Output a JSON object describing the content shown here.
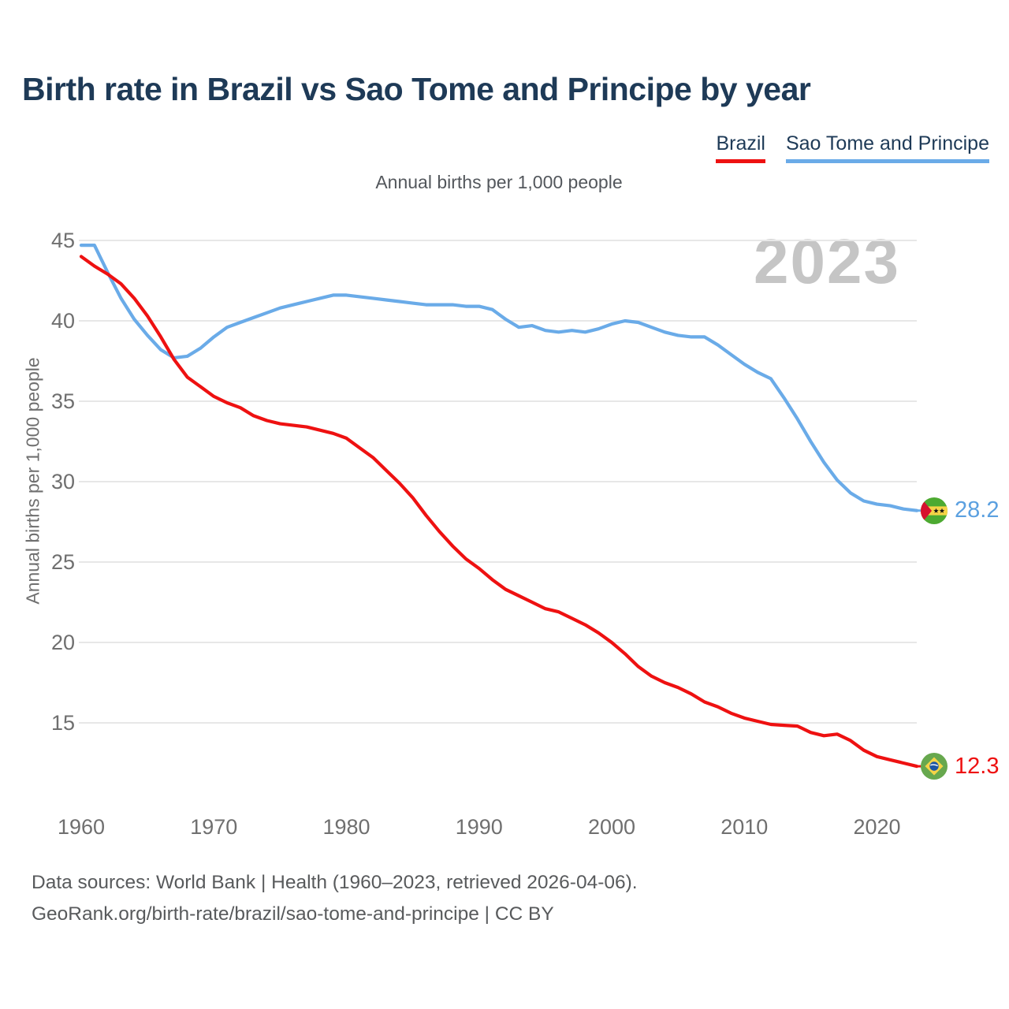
{
  "title": "Birth rate in Brazil vs Sao Tome and Principe by year",
  "subtitle": "Annual births per 1,000 people",
  "watermark": "2023",
  "y_axis_label": "Annual births per 1,000 people",
  "legend": {
    "items": [
      {
        "label": "Brazil",
        "color": "#ee1111"
      },
      {
        "label": "Sao Tome and Principe",
        "color": "#6aabe8"
      }
    ]
  },
  "end_labels": [
    {
      "series": "Sao Tome and Principe",
      "value": "28.2",
      "color": "#5ba0e0",
      "flag_icon": "sao-tome-and-principe-flag"
    },
    {
      "series": "Brazil",
      "value": "12.3",
      "color": "#ee1111",
      "flag_icon": "brazil-flag"
    }
  ],
  "footer": {
    "line1": "Data sources: World Bank | Health (1960–2023, retrieved 2026-04-06).",
    "line2": "GeoRank.org/birth-rate/brazil/sao-tome-and-principe | CC BY"
  },
  "chart_data": {
    "type": "line",
    "title": "Birth rate in Brazil vs Sao Tome and Principe by year",
    "xlabel": "",
    "ylabel": "Annual births per 1,000 people",
    "x_start": 1960,
    "x_end": 2023,
    "xticks": [
      1960,
      1970,
      1980,
      1990,
      2000,
      2010,
      2020
    ],
    "yticks": [
      45,
      40,
      35,
      30,
      25,
      20,
      15
    ],
    "ylim": [
      15,
      45
    ],
    "grid": "horizontal",
    "legend_position": "top-right",
    "series": [
      {
        "name": "Sao Tome and Principe",
        "color": "#6aabe8",
        "values": [
          44.7,
          44.7,
          43.0,
          41.4,
          40.1,
          39.1,
          38.2,
          37.7,
          37.8,
          38.3,
          39.0,
          39.6,
          39.9,
          40.2,
          40.5,
          40.8,
          41.0,
          41.2,
          41.4,
          41.6,
          41.6,
          41.5,
          41.4,
          41.3,
          41.2,
          41.1,
          41.0,
          41.0,
          41.0,
          40.9,
          40.9,
          40.7,
          40.1,
          39.6,
          39.7,
          39.4,
          39.3,
          39.4,
          39.3,
          39.5,
          39.8,
          40.0,
          39.9,
          39.6,
          39.3,
          39.1,
          39.0,
          39.0,
          38.5,
          37.9,
          37.3,
          36.8,
          36.4,
          35.2,
          33.9,
          32.5,
          31.2,
          30.1,
          29.3,
          28.8,
          28.6,
          28.5,
          28.3,
          28.2
        ]
      },
      {
        "name": "Brazil",
        "color": "#ee1111",
        "values": [
          44.0,
          43.4,
          42.9,
          42.3,
          41.4,
          40.3,
          39.0,
          37.6,
          36.5,
          35.9,
          35.3,
          34.9,
          34.6,
          34.1,
          33.8,
          33.6,
          33.5,
          33.4,
          33.2,
          33.0,
          32.7,
          32.1,
          31.5,
          30.7,
          29.9,
          29.0,
          27.9,
          26.9,
          26.0,
          25.2,
          24.6,
          23.9,
          23.3,
          22.9,
          22.5,
          22.1,
          21.9,
          21.5,
          21.1,
          20.6,
          20.0,
          19.3,
          18.5,
          17.9,
          17.5,
          17.2,
          16.8,
          16.3,
          16.0,
          15.6,
          15.3,
          15.1,
          14.9,
          14.85,
          14.8,
          14.4,
          14.2,
          14.3,
          13.9,
          13.3,
          12.9,
          12.7,
          12.5,
          12.3
        ]
      }
    ]
  }
}
